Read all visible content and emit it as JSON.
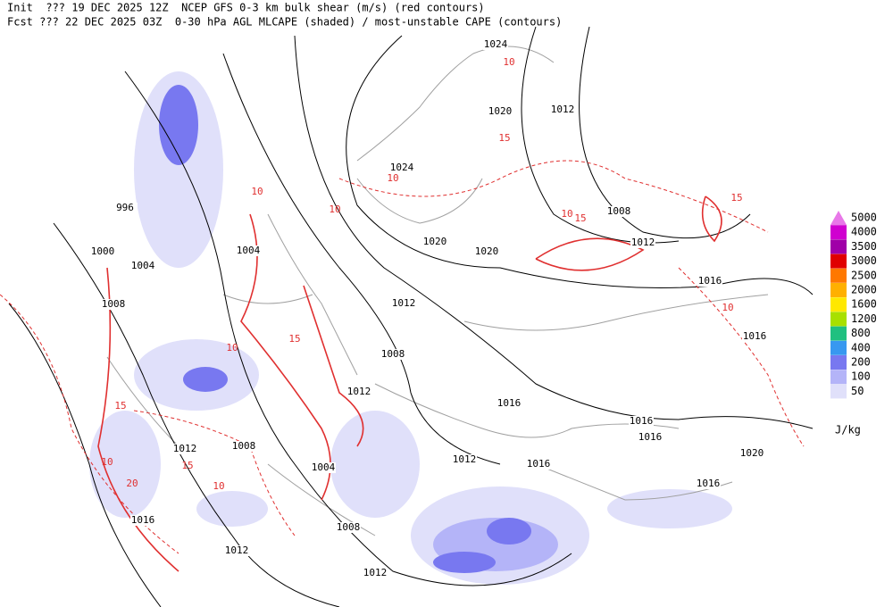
{
  "header": {
    "lines": [
      "Init  ??? 19 DEC 2025 12Z  NCEP GFS 0-3 km bulk shear (m/s) (red contours)",
      "Fcst ??? 22 DEC 2025 03Z  0-30 hPa AGL MLCAPE (shaded) / most-unstable CAPE (contours)"
    ]
  },
  "legend": {
    "unit": "J/kg",
    "levels": [
      {
        "value": 5000,
        "color": "#e878e8"
      },
      {
        "value": 4000,
        "color": "#d000d0"
      },
      {
        "value": 3500,
        "color": "#a000a8"
      },
      {
        "value": 3000,
        "color": "#e00000"
      },
      {
        "value": 2500,
        "color": "#ff7800"
      },
      {
        "value": 2000,
        "color": "#ffb000"
      },
      {
        "value": 1600,
        "color": "#ffe800"
      },
      {
        "value": 1200,
        "color": "#a8e000"
      },
      {
        "value": 800,
        "color": "#20c080"
      },
      {
        "value": 400,
        "color": "#3898f0"
      },
      {
        "value": 200,
        "color": "#7878f0"
      },
      {
        "value": 100,
        "color": "#b4b4f8"
      },
      {
        "value": 50,
        "color": "#e0e0fa"
      }
    ]
  },
  "isobar_labels": [
    "1024",
    "1020",
    "1012",
    "1024",
    "996",
    "1000",
    "1004",
    "1004",
    "1008",
    "1012",
    "1020",
    "1020",
    "1016",
    "1008",
    "1012",
    "1016",
    "1008",
    "1012",
    "1016",
    "1016",
    "1016",
    "1012",
    "1008",
    "1004",
    "1012",
    "1016",
    "1020",
    "1016",
    "1016",
    "1008",
    "1012",
    "1012"
  ],
  "shear_labels": [
    "10",
    "15",
    "10",
    "10",
    "15",
    "10",
    "15",
    "10",
    "20",
    "15",
    "10",
    "15",
    "10",
    "15",
    "10",
    "10"
  ]
}
